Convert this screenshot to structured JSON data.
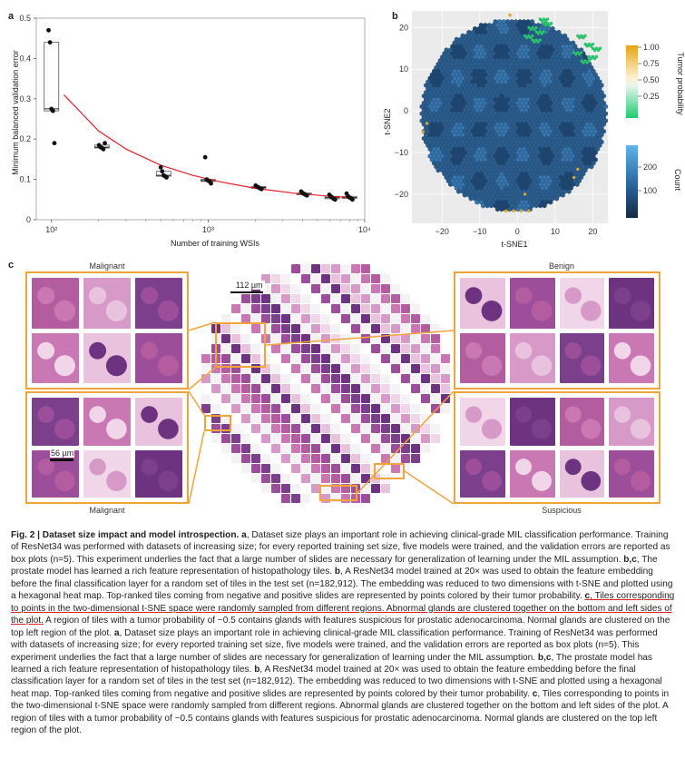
{
  "panels": {
    "a": "a",
    "b": "b",
    "c": "c"
  },
  "chart_data": [
    {
      "type": "scatter",
      "ylabel": "Minimum balanced validation error",
      "xlabel": "Number of training WSIs",
      "x_scale": "log",
      "xlim": [
        80,
        10000
      ],
      "ylim": [
        0,
        0.5
      ],
      "yticks": [
        "0",
        "0.1",
        "0.2",
        "0.3",
        "0.4",
        "0.5"
      ],
      "xticks": [
        "10²",
        "10³",
        "10⁴"
      ],
      "points": [
        {
          "x": 100,
          "y": 0.47
        },
        {
          "x": 100,
          "y": 0.44
        },
        {
          "x": 100,
          "y": 0.275
        },
        {
          "x": 100,
          "y": 0.27
        },
        {
          "x": 100,
          "y": 0.19
        },
        {
          "x": 210,
          "y": 0.185
        },
        {
          "x": 210,
          "y": 0.18
        },
        {
          "x": 210,
          "y": 0.178
        },
        {
          "x": 210,
          "y": 0.175
        },
        {
          "x": 210,
          "y": 0.19
        },
        {
          "x": 520,
          "y": 0.13
        },
        {
          "x": 520,
          "y": 0.12
        },
        {
          "x": 520,
          "y": 0.11
        },
        {
          "x": 520,
          "y": 0.108
        },
        {
          "x": 520,
          "y": 0.105
        },
        {
          "x": 1000,
          "y": 0.155
        },
        {
          "x": 1000,
          "y": 0.1
        },
        {
          "x": 1000,
          "y": 0.097
        },
        {
          "x": 1000,
          "y": 0.095
        },
        {
          "x": 1000,
          "y": 0.09
        },
        {
          "x": 2100,
          "y": 0.085
        },
        {
          "x": 2100,
          "y": 0.082
        },
        {
          "x": 2100,
          "y": 0.08
        },
        {
          "x": 2100,
          "y": 0.078
        },
        {
          "x": 2100,
          "y": 0.076
        },
        {
          "x": 4100,
          "y": 0.07
        },
        {
          "x": 4100,
          "y": 0.066
        },
        {
          "x": 4100,
          "y": 0.064
        },
        {
          "x": 4100,
          "y": 0.062
        },
        {
          "x": 4100,
          "y": 0.06
        },
        {
          "x": 6200,
          "y": 0.062
        },
        {
          "x": 6200,
          "y": 0.058
        },
        {
          "x": 6200,
          "y": 0.055
        },
        {
          "x": 6200,
          "y": 0.052
        },
        {
          "x": 6200,
          "y": 0.05
        },
        {
          "x": 8000,
          "y": 0.065
        },
        {
          "x": 8000,
          "y": 0.058
        },
        {
          "x": 8000,
          "y": 0.055
        },
        {
          "x": 8000,
          "y": 0.053
        },
        {
          "x": 8000,
          "y": 0.05
        }
      ],
      "boxes": [
        {
          "x": 100,
          "q1": 0.27,
          "median": 0.275,
          "q3": 0.44
        },
        {
          "x": 210,
          "q1": 0.178,
          "median": 0.18,
          "q3": 0.185
        },
        {
          "x": 520,
          "q1": 0.108,
          "median": 0.11,
          "q3": 0.12
        },
        {
          "x": 1000,
          "q1": 0.095,
          "median": 0.097,
          "q3": 0.1
        },
        {
          "x": 2100,
          "q1": 0.078,
          "median": 0.08,
          "q3": 0.082
        },
        {
          "x": 4100,
          "q1": 0.062,
          "median": 0.064,
          "q3": 0.066
        },
        {
          "x": 6200,
          "q1": 0.052,
          "median": 0.055,
          "q3": 0.058
        },
        {
          "x": 8000,
          "q1": 0.053,
          "median": 0.055,
          "q3": 0.058
        }
      ],
      "fit_curve": [
        {
          "x": 120,
          "y": 0.31
        },
        {
          "x": 200,
          "y": 0.22
        },
        {
          "x": 300,
          "y": 0.175
        },
        {
          "x": 500,
          "y": 0.135
        },
        {
          "x": 800,
          "y": 0.11
        },
        {
          "x": 1200,
          "y": 0.094
        },
        {
          "x": 2000,
          "y": 0.078
        },
        {
          "x": 3500,
          "y": 0.066
        },
        {
          "x": 6000,
          "y": 0.058
        },
        {
          "x": 8000,
          "y": 0.055
        }
      ],
      "colors": {
        "points": "#111111",
        "box": "#555555",
        "fit": "#e8202a"
      }
    },
    {
      "type": "heatmap",
      "xlabel": "t-SNE1",
      "ylabel": "t-SNE2",
      "xlim": [
        -28,
        24
      ],
      "ylim": [
        -27,
        24
      ],
      "xticks": [
        "−20",
        "−10",
        "0",
        "10",
        "20"
      ],
      "yticks": [
        "20",
        "10",
        "0",
        "−10",
        "−20"
      ],
      "legend_prob_title": "Tumor probability",
      "legend_prob_ticks": [
        "1.00",
        "0.75",
        "0.50",
        "0.25"
      ],
      "legend_count_title": "Count",
      "legend_count_ticks": [
        "200",
        "100"
      ],
      "colors": {
        "fill": "#2c5f8f",
        "fill_dark": "#1e4a75",
        "low_prob": "#2ecc71",
        "high_prob": "#f2b01e"
      }
    }
  ],
  "panel_c": {
    "label_top_left": "Malignant",
    "label_bottom_left": "Malignant",
    "label_top_right": "Benign",
    "label_bottom_right": "Suspicious",
    "scale_top": "112 µm",
    "scale_bottom": "56 µm",
    "accent": "#f0a43a"
  },
  "caption": {
    "fig": "Fig. 2 | Dataset size impact and model introspection.",
    "a1_label": "a",
    "a1": ", Dataset size plays an important role in achieving clinical-grade MIL classification performance. Training of ResNet34 was performed with datasets of increasing size; for every reported training set size, five models were trained, and the validation errors are reported as box plots (n=5). This experiment underlies the fact that a large number of slides are necessary for generalization of learning under the MIL assumption. ",
    "bc1_label": "b,c",
    "bc1": ", The prostate model has learned a rich feature representation of histopathology tiles. ",
    "b1_label": "b",
    "b1": ", A ResNet34 model trained at 20× was used to obtain the feature embedding before the final classification layer for a random set of tiles in the test set (n=182,912). The embedding was reduced to two dimensions with t-SNE and plotted using a hexagonal heat map. Top-ranked tiles coming from negative and positive slides are represented by points colored by their tumor probability. ",
    "c1_label": "c",
    "c1": ", Tiles corresponding to points in the two-dimensional t-SNE space were randomly sampled from different regions. Abnormal glands are clustered together on the bottom and left sides of the plot.",
    "c1_tail": " A region of tiles with a tumor probability of ~0.5 contains glands with features suspicious for prostatic adenocarcinoma. Normal glands are clustered on the top left region of the plot.",
    "a2_label": "a",
    "a2": ", Dataset size plays an important role in achieving clinical-grade MIL classification performance. Training of ResNet34 was performed with datasets of increasing size; for every reported training set size, five models were trained, and the validation errors are reported as box plots (n=5). This experiment underlies the fact that a large number of slides are necessary for generalization of learning under the MIL assumption. ",
    "bc2_label": "b,c",
    "bc2": ", The prostate model has learned a rich feature representation of histopathology tiles. ",
    "b2_label": "b",
    "b2": ", A ResNet34 model trained at 20× was used to obtain the feature embedding before the final classification layer for a random set of tiles in the test set (n=182,912). The embedding was reduced to two dimensions with t-SNE and plotted using a hexagonal heat map. Top-ranked tiles coming from negative and positive slides are represented by points colored by their tumor probability. ",
    "c2_label": "c",
    "c2": ", Tiles corresponding to points in the two-dimensional t-SNE space were randomly sampled from different regions. Abnormal glands are clustered together on the bottom and left sides of the plot. A region of tiles with a tumor probability of ~0.5 contains glands with features suspicious for prostatic adenocarcinoma. Normal glands are clustered on the top left region of the plot."
  }
}
